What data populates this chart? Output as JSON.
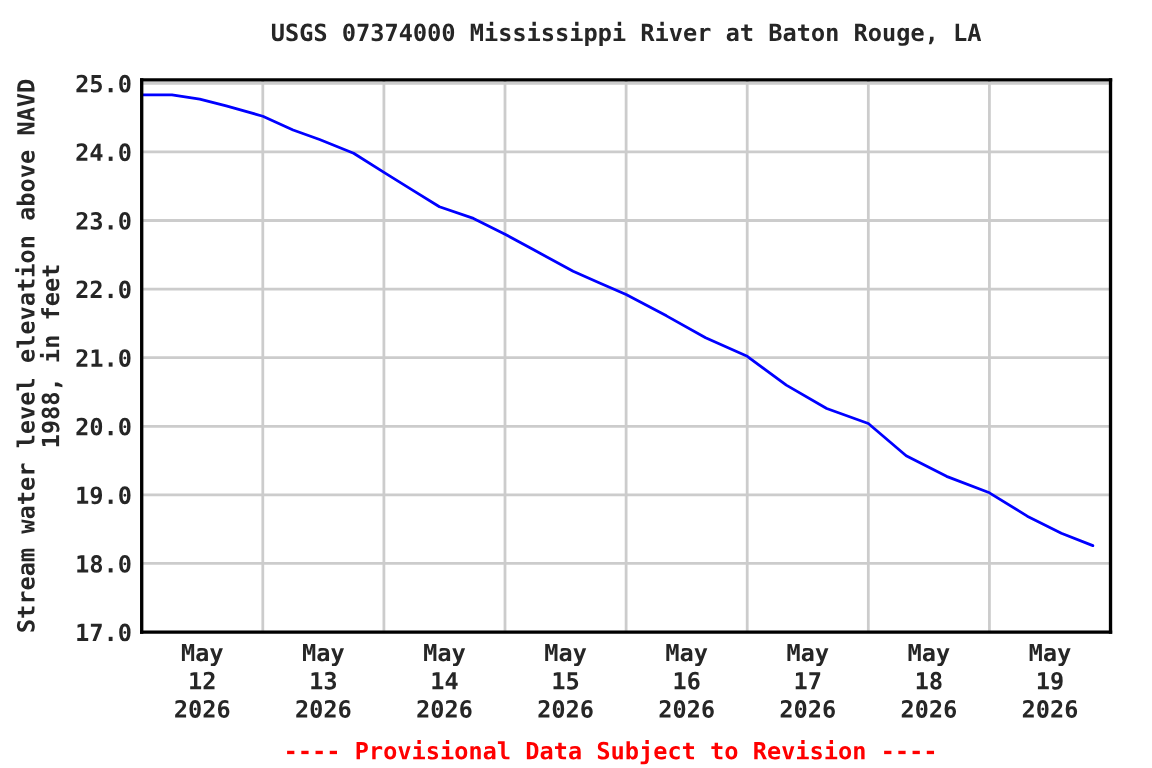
{
  "chart_data": {
    "type": "line",
    "title": "USGS 07374000 Mississippi River at Baton Rouge, LA",
    "ylabel": "Stream water level elevation above NAVD\n1988, in feet",
    "annotations": [
      "---- Provisional Data Subject to Revision ----"
    ],
    "x": [
      "2026-05-12T00:00",
      "2026-05-12T06:00",
      "2026-05-12T11:30",
      "2026-05-12T16:45",
      "2026-05-13T00:00",
      "2026-05-13T06:00",
      "2026-05-13T11:15",
      "2026-05-13T18:00",
      "2026-05-14T00:15",
      "2026-05-14T05:45",
      "2026-05-14T11:00",
      "2026-05-14T17:45",
      "2026-05-15T00:00",
      "2026-05-15T05:30",
      "2026-05-15T13:30",
      "2026-05-15T18:45",
      "2026-05-16T00:00",
      "2026-05-16T08:00",
      "2026-05-16T15:45",
      "2026-05-17T00:00",
      "2026-05-17T07:45",
      "2026-05-17T15:45",
      "2026-05-18T00:00",
      "2026-05-18T07:30",
      "2026-05-18T15:30",
      "2026-05-19T00:00",
      "2026-05-19T07:30",
      "2026-05-19T14:15",
      "2026-05-19T20:30"
    ],
    "series": [
      {
        "color": "#0000ff",
        "values": [
          24.83,
          24.83,
          24.77,
          24.67,
          24.52,
          24.32,
          24.18,
          23.98,
          23.69,
          23.44,
          23.2,
          23.03,
          22.8,
          22.58,
          22.26,
          22.09,
          21.92,
          21.61,
          21.29,
          21.02,
          20.6,
          20.26,
          20.04,
          19.57,
          19.27,
          19.03,
          18.69,
          18.44,
          18.26
        ]
      }
    ],
    "xlim": [
      "2026-05-12T00:00",
      "2026-05-20T00:00"
    ],
    "ylim": [
      17,
      25.05
    ],
    "xticks": [
      {
        "value": "2026-05-12T00:00",
        "label": null
      },
      {
        "value": "2026-05-12T12:00",
        "label": "May\n12\n2026"
      },
      {
        "value": "2026-05-13T00:00",
        "label": null
      },
      {
        "value": "2026-05-13T12:00",
        "label": "May\n13\n2026"
      },
      {
        "value": "2026-05-14T00:00",
        "label": null
      },
      {
        "value": "2026-05-14T12:00",
        "label": "May\n14\n2026"
      },
      {
        "value": "2026-05-15T00:00",
        "label": null
      },
      {
        "value": "2026-05-15T12:00",
        "label": "May\n15\n2026"
      },
      {
        "value": "2026-05-16T00:00",
        "label": null
      },
      {
        "value": "2026-05-16T12:00",
        "label": "May\n16\n2026"
      },
      {
        "value": "2026-05-17T00:00",
        "label": null
      },
      {
        "value": "2026-05-17T12:00",
        "label": "May\n17\n2026"
      },
      {
        "value": "2026-05-18T00:00",
        "label": null
      },
      {
        "value": "2026-05-18T12:00",
        "label": "May\n18\n2026"
      },
      {
        "value": "2026-05-19T00:00",
        "label": null
      },
      {
        "value": "2026-05-19T12:00",
        "label": "May\n19\n2026"
      },
      {
        "value": "2026-05-20T00:00",
        "label": null
      }
    ],
    "yticks": [
      {
        "value": 17,
        "label": "17.0"
      },
      {
        "value": 18,
        "label": "18.0"
      },
      {
        "value": 19,
        "label": "19.0"
      },
      {
        "value": 20,
        "label": "20.0"
      },
      {
        "value": 21,
        "label": "21.0"
      },
      {
        "value": 22,
        "label": "22.0"
      },
      {
        "value": 23,
        "label": "23.0"
      },
      {
        "value": 24,
        "label": "24.0"
      },
      {
        "value": 25,
        "label": "25.0"
      }
    ],
    "grid": true,
    "marker": "none",
    "line_style": "solid",
    "legend": false
  }
}
